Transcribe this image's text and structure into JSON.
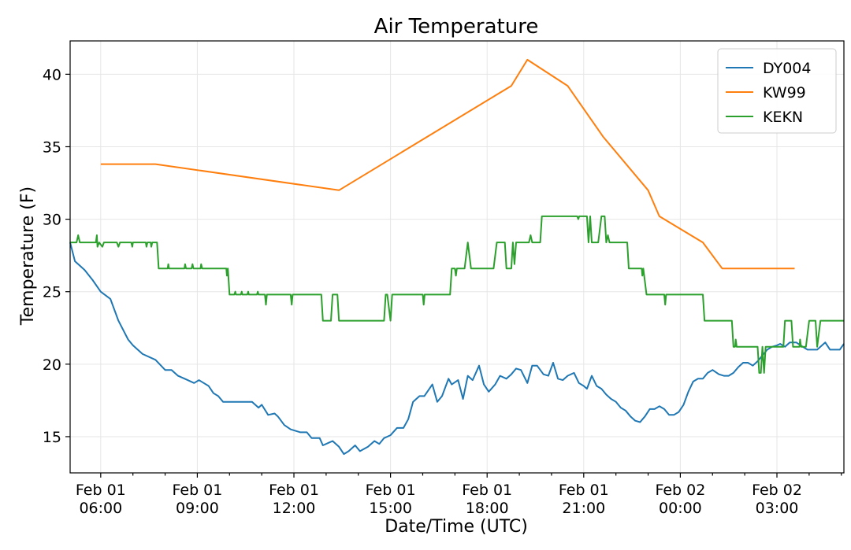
{
  "chart_data": {
    "type": "line",
    "title": "Air Temperature",
    "xlabel": "Date/Time (UTC)",
    "ylabel": "Temperature (F)",
    "xlim": [
      5.05,
      29.08
    ],
    "ylim": [
      12.5,
      42.3
    ],
    "grid": true,
    "legend_position": "top-right",
    "x_unit": "hours since Feb 01 00:00 UTC",
    "x_ticks": [
      {
        "x": 6,
        "line1": "Feb 01",
        "line2": "06:00"
      },
      {
        "x": 9,
        "line1": "Feb 01",
        "line2": "09:00"
      },
      {
        "x": 12,
        "line1": "Feb 01",
        "line2": "12:00"
      },
      {
        "x": 15,
        "line1": "Feb 01",
        "line2": "15:00"
      },
      {
        "x": 18,
        "line1": "Feb 01",
        "line2": "18:00"
      },
      {
        "x": 21,
        "line1": "Feb 01",
        "line2": "21:00"
      },
      {
        "x": 24,
        "line1": "Feb 02",
        "line2": "00:00"
      },
      {
        "x": 27,
        "line1": "Feb 02",
        "line2": "03:00"
      }
    ],
    "y_ticks": [
      15,
      20,
      25,
      30,
      35,
      40
    ],
    "series": [
      {
        "name": "DY004",
        "color": "#1f77b4",
        "points": [
          [
            5.05,
            28.4
          ],
          [
            5.2,
            27.1
          ],
          [
            5.5,
            26.5
          ],
          [
            5.75,
            25.8
          ],
          [
            6.0,
            25.0
          ],
          [
            6.3,
            24.5
          ],
          [
            6.55,
            23.0
          ],
          [
            6.85,
            21.7
          ],
          [
            7.0,
            21.3
          ],
          [
            7.3,
            20.7
          ],
          [
            7.7,
            20.3
          ],
          [
            8.0,
            19.6
          ],
          [
            8.2,
            19.6
          ],
          [
            8.4,
            19.2
          ],
          [
            8.7,
            18.9
          ],
          [
            8.9,
            18.7
          ],
          [
            9.05,
            18.9
          ],
          [
            9.2,
            18.7
          ],
          [
            9.35,
            18.5
          ],
          [
            9.5,
            18.0
          ],
          [
            9.65,
            17.8
          ],
          [
            9.8,
            17.4
          ],
          [
            10.0,
            17.4
          ],
          [
            10.3,
            17.4
          ],
          [
            10.5,
            17.4
          ],
          [
            10.7,
            17.4
          ],
          [
            10.9,
            17.0
          ],
          [
            11.0,
            17.2
          ],
          [
            11.2,
            16.5
          ],
          [
            11.4,
            16.6
          ],
          [
            11.5,
            16.4
          ],
          [
            11.7,
            15.8
          ],
          [
            11.9,
            15.5
          ],
          [
            12.05,
            15.4
          ],
          [
            12.2,
            15.3
          ],
          [
            12.4,
            15.3
          ],
          [
            12.55,
            14.9
          ],
          [
            12.8,
            14.9
          ],
          [
            12.9,
            14.4
          ],
          [
            13.1,
            14.6
          ],
          [
            13.2,
            14.7
          ],
          [
            13.4,
            14.3
          ],
          [
            13.55,
            13.8
          ],
          [
            13.7,
            14.0
          ],
          [
            13.9,
            14.4
          ],
          [
            14.05,
            14.0
          ],
          [
            14.3,
            14.3
          ],
          [
            14.5,
            14.7
          ],
          [
            14.65,
            14.5
          ],
          [
            14.8,
            14.9
          ],
          [
            15.0,
            15.1
          ],
          [
            15.2,
            15.6
          ],
          [
            15.4,
            15.6
          ],
          [
            15.55,
            16.2
          ],
          [
            15.7,
            17.4
          ],
          [
            15.9,
            17.8
          ],
          [
            16.05,
            17.8
          ],
          [
            16.3,
            18.6
          ],
          [
            16.45,
            17.4
          ],
          [
            16.6,
            17.8
          ],
          [
            16.8,
            19.0
          ],
          [
            16.9,
            18.6
          ],
          [
            17.1,
            18.9
          ],
          [
            17.25,
            17.6
          ],
          [
            17.4,
            19.2
          ],
          [
            17.55,
            18.9
          ],
          [
            17.75,
            19.9
          ],
          [
            17.9,
            18.6
          ],
          [
            18.05,
            18.1
          ],
          [
            18.25,
            18.6
          ],
          [
            18.4,
            19.2
          ],
          [
            18.6,
            19.0
          ],
          [
            18.75,
            19.3
          ],
          [
            18.9,
            19.7
          ],
          [
            19.05,
            19.6
          ],
          [
            19.25,
            18.7
          ],
          [
            19.4,
            19.9
          ],
          [
            19.55,
            19.9
          ],
          [
            19.75,
            19.3
          ],
          [
            19.9,
            19.2
          ],
          [
            20.05,
            20.1
          ],
          [
            20.2,
            19.0
          ],
          [
            20.35,
            18.9
          ],
          [
            20.5,
            19.2
          ],
          [
            20.7,
            19.4
          ],
          [
            20.85,
            18.7
          ],
          [
            21.0,
            18.5
          ],
          [
            21.1,
            18.3
          ],
          [
            21.25,
            19.2
          ],
          [
            21.4,
            18.5
          ],
          [
            21.55,
            18.3
          ],
          [
            21.7,
            17.9
          ],
          [
            21.85,
            17.6
          ],
          [
            22.0,
            17.4
          ],
          [
            22.15,
            17.0
          ],
          [
            22.3,
            16.8
          ],
          [
            22.45,
            16.4
          ],
          [
            22.6,
            16.1
          ],
          [
            22.75,
            16.0
          ],
          [
            22.9,
            16.4
          ],
          [
            23.05,
            16.9
          ],
          [
            23.2,
            16.9
          ],
          [
            23.35,
            17.1
          ],
          [
            23.5,
            16.9
          ],
          [
            23.65,
            16.5
          ],
          [
            23.8,
            16.5
          ],
          [
            23.95,
            16.7
          ],
          [
            24.1,
            17.2
          ],
          [
            24.25,
            18.1
          ],
          [
            24.4,
            18.8
          ],
          [
            24.55,
            19.0
          ],
          [
            24.7,
            19.0
          ],
          [
            24.85,
            19.4
          ],
          [
            25.0,
            19.6
          ],
          [
            25.2,
            19.3
          ],
          [
            25.35,
            19.2
          ],
          [
            25.5,
            19.2
          ],
          [
            25.65,
            19.4
          ],
          [
            25.8,
            19.8
          ],
          [
            25.95,
            20.1
          ],
          [
            26.1,
            20.1
          ],
          [
            26.25,
            19.9
          ],
          [
            26.4,
            20.2
          ],
          [
            26.55,
            20.6
          ],
          [
            26.7,
            21.0
          ],
          [
            26.85,
            21.2
          ],
          [
            27.0,
            21.3
          ],
          [
            27.1,
            21.4
          ],
          [
            27.25,
            21.2
          ],
          [
            27.4,
            21.5
          ],
          [
            27.6,
            21.5
          ],
          [
            27.8,
            21.2
          ],
          [
            27.95,
            21.0
          ],
          [
            28.1,
            21.0
          ],
          [
            28.25,
            21.0
          ],
          [
            28.4,
            21.3
          ],
          [
            28.5,
            21.5
          ],
          [
            28.65,
            21.0
          ],
          [
            28.8,
            21.0
          ],
          [
            28.95,
            21.0
          ],
          [
            29.08,
            21.4
          ]
        ]
      },
      {
        "name": "KW99",
        "color": "#ff7f0e",
        "points": [
          [
            6.0,
            33.8
          ],
          [
            7.7,
            33.8
          ],
          [
            13.4,
            32.0
          ],
          [
            18.75,
            39.2
          ],
          [
            19.25,
            41.0
          ],
          [
            20.5,
            39.2
          ],
          [
            21.6,
            35.7
          ],
          [
            23.0,
            32.0
          ],
          [
            23.35,
            30.2
          ],
          [
            24.7,
            28.4
          ],
          [
            25.3,
            26.6
          ],
          [
            27.55,
            26.6
          ]
        ]
      },
      {
        "name": "KEKN",
        "color": "#2ca02c",
        "points": [
          [
            5.05,
            28.4
          ],
          [
            5.25,
            28.4
          ],
          [
            5.3,
            28.9
          ],
          [
            5.35,
            28.4
          ],
          [
            5.85,
            28.4
          ],
          [
            5.88,
            28.9
          ],
          [
            5.9,
            28.1
          ],
          [
            5.95,
            28.4
          ],
          [
            6.05,
            28.1
          ],
          [
            6.1,
            28.4
          ],
          [
            6.5,
            28.4
          ],
          [
            6.55,
            28.1
          ],
          [
            6.6,
            28.4
          ],
          [
            6.95,
            28.4
          ],
          [
            6.98,
            28.1
          ],
          [
            7.0,
            28.4
          ],
          [
            7.4,
            28.4
          ],
          [
            7.42,
            28.1
          ],
          [
            7.45,
            28.4
          ],
          [
            7.55,
            28.4
          ],
          [
            7.57,
            28.1
          ],
          [
            7.6,
            28.4
          ],
          [
            7.75,
            28.4
          ],
          [
            7.8,
            26.6
          ],
          [
            8.08,
            26.6
          ],
          [
            8.1,
            26.9
          ],
          [
            8.12,
            26.6
          ],
          [
            8.6,
            26.6
          ],
          [
            8.62,
            26.9
          ],
          [
            8.65,
            26.6
          ],
          [
            8.82,
            26.6
          ],
          [
            8.85,
            26.9
          ],
          [
            8.88,
            26.6
          ],
          [
            9.1,
            26.6
          ],
          [
            9.12,
            26.9
          ],
          [
            9.15,
            26.6
          ],
          [
            9.9,
            26.6
          ],
          [
            9.92,
            26.1
          ],
          [
            9.95,
            26.6
          ],
          [
            10.0,
            24.8
          ],
          [
            10.15,
            24.8
          ],
          [
            10.18,
            25.0
          ],
          [
            10.2,
            24.8
          ],
          [
            10.35,
            24.8
          ],
          [
            10.38,
            25.0
          ],
          [
            10.4,
            24.8
          ],
          [
            10.55,
            24.8
          ],
          [
            10.58,
            25.0
          ],
          [
            10.6,
            24.8
          ],
          [
            10.85,
            24.8
          ],
          [
            10.88,
            25.0
          ],
          [
            10.9,
            24.8
          ],
          [
            11.1,
            24.8
          ],
          [
            11.13,
            24.1
          ],
          [
            11.16,
            24.8
          ],
          [
            11.9,
            24.8
          ],
          [
            11.93,
            24.1
          ],
          [
            11.96,
            24.8
          ],
          [
            12.85,
            24.8
          ],
          [
            12.9,
            23.0
          ],
          [
            13.15,
            23.0
          ],
          [
            13.2,
            24.8
          ],
          [
            13.35,
            24.8
          ],
          [
            13.4,
            23.0
          ],
          [
            14.8,
            23.0
          ],
          [
            14.85,
            24.8
          ],
          [
            14.9,
            24.8
          ],
          [
            15.0,
            23.0
          ],
          [
            15.05,
            24.8
          ],
          [
            16.0,
            24.8
          ],
          [
            16.03,
            24.1
          ],
          [
            16.06,
            24.8
          ],
          [
            16.85,
            24.8
          ],
          [
            16.9,
            26.6
          ],
          [
            17.0,
            26.6
          ],
          [
            17.03,
            26.1
          ],
          [
            17.06,
            26.6
          ],
          [
            17.3,
            26.6
          ],
          [
            17.4,
            28.4
          ],
          [
            17.5,
            26.6
          ],
          [
            18.2,
            26.6
          ],
          [
            18.3,
            28.4
          ],
          [
            18.55,
            28.4
          ],
          [
            18.6,
            26.6
          ],
          [
            18.75,
            26.6
          ],
          [
            18.8,
            28.4
          ],
          [
            18.85,
            26.9
          ],
          [
            18.9,
            28.4
          ],
          [
            19.3,
            28.4
          ],
          [
            19.35,
            28.9
          ],
          [
            19.4,
            28.4
          ],
          [
            19.65,
            28.4
          ],
          [
            19.7,
            30.2
          ],
          [
            20.8,
            30.2
          ],
          [
            20.83,
            30.0
          ],
          [
            20.86,
            30.2
          ],
          [
            21.1,
            30.2
          ],
          [
            21.15,
            28.4
          ],
          [
            21.2,
            30.2
          ],
          [
            21.25,
            28.4
          ],
          [
            21.45,
            28.4
          ],
          [
            21.55,
            30.2
          ],
          [
            21.65,
            30.2
          ],
          [
            21.7,
            28.4
          ],
          [
            21.75,
            28.9
          ],
          [
            21.8,
            28.4
          ],
          [
            22.35,
            28.4
          ],
          [
            22.4,
            26.6
          ],
          [
            22.8,
            26.6
          ],
          [
            22.82,
            26.1
          ],
          [
            22.85,
            26.6
          ],
          [
            22.95,
            24.8
          ],
          [
            23.5,
            24.8
          ],
          [
            23.53,
            24.1
          ],
          [
            23.56,
            24.8
          ],
          [
            24.7,
            24.8
          ],
          [
            24.75,
            23.0
          ],
          [
            25.6,
            23.0
          ],
          [
            25.65,
            21.2
          ],
          [
            25.7,
            21.2
          ],
          [
            25.72,
            21.7
          ],
          [
            25.75,
            21.2
          ],
          [
            26.4,
            21.2
          ],
          [
            26.45,
            19.4
          ],
          [
            26.5,
            19.4
          ],
          [
            26.55,
            21.2
          ],
          [
            26.6,
            19.4
          ],
          [
            26.65,
            21.2
          ],
          [
            27.2,
            21.2
          ],
          [
            27.25,
            23.0
          ],
          [
            27.45,
            23.0
          ],
          [
            27.5,
            21.2
          ],
          [
            27.7,
            21.2
          ],
          [
            27.72,
            21.7
          ],
          [
            27.75,
            21.2
          ],
          [
            27.9,
            21.2
          ],
          [
            28.0,
            23.0
          ],
          [
            28.2,
            23.0
          ],
          [
            28.25,
            21.2
          ],
          [
            28.35,
            23.0
          ],
          [
            29.08,
            23.0
          ]
        ]
      }
    ]
  }
}
